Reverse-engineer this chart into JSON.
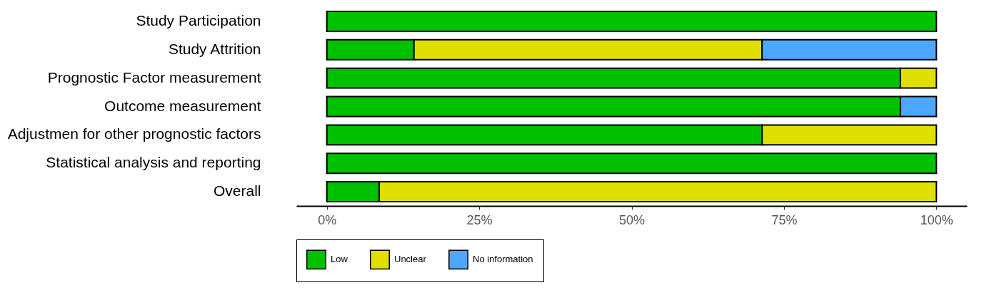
{
  "chart_data": {
    "type": "bar",
    "orientation": "horizontal",
    "stacked": true,
    "categories": [
      "Study Participation",
      "Study Attrition",
      "Prognostic Factor measurement",
      "Outcome measurement",
      "Adjustmen for other prognostic factors",
      "Statistical analysis and reporting",
      "Overall"
    ],
    "series": [
      {
        "name": "Low",
        "color": "#00c000",
        "values": [
          100,
          14.3,
          94.1,
          94.1,
          71.4,
          100,
          8.6
        ]
      },
      {
        "name": "Unclear",
        "color": "#e0e000",
        "values": [
          0,
          57.1,
          5.9,
          0,
          28.6,
          0,
          91.4
        ]
      },
      {
        "name": "No information",
        "color": "#4da6ff",
        "values": [
          0,
          28.6,
          0,
          5.9,
          0,
          0,
          0
        ]
      }
    ],
    "xlim": [
      -5,
      105
    ],
    "xticks": [
      {
        "value": 0,
        "label": "0%"
      },
      {
        "value": 25,
        "label": "25%"
      },
      {
        "value": 50,
        "label": "50%"
      },
      {
        "value": 75,
        "label": "75%"
      },
      {
        "value": 100,
        "label": "100%"
      }
    ],
    "grid": false,
    "legend": "bottom"
  }
}
